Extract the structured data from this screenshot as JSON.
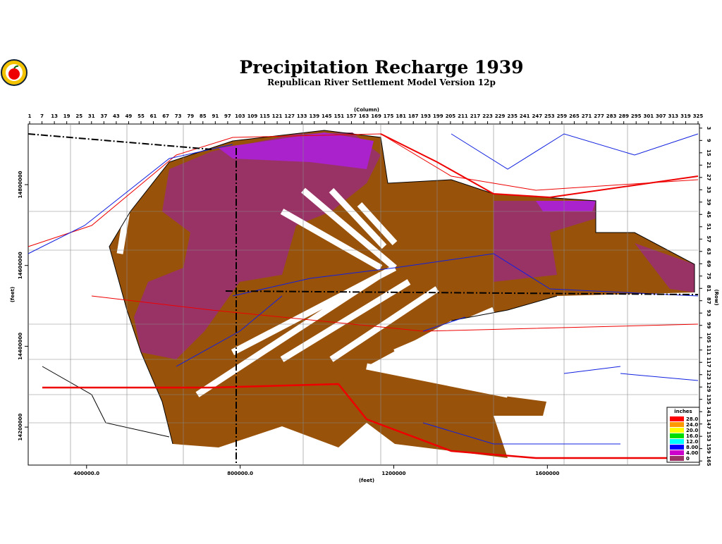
{
  "header": {
    "title": "Precipitation Recharge 1939",
    "subtitle": "Republican River Settlement Model Version 12p"
  },
  "map": {
    "column_label": "(Column)",
    "row_label": "(Row)",
    "x_label": "(feet)",
    "y_label": "(feet)",
    "columns": [
      1,
      7,
      13,
      19,
      25,
      31,
      37,
      43,
      49,
      55,
      61,
      67,
      73,
      79,
      85,
      91,
      97,
      103,
      109,
      115,
      121,
      127,
      133,
      139,
      145,
      151,
      157,
      163,
      169,
      175,
      181,
      187,
      193,
      199,
      205,
      211,
      217,
      223,
      229,
      235,
      241,
      247,
      253,
      259,
      265,
      271,
      277,
      283,
      289,
      295,
      301,
      307,
      313,
      319,
      325
    ],
    "column_range": [
      1,
      325
    ],
    "rows": [
      3,
      9,
      15,
      21,
      27,
      33,
      39,
      45,
      51,
      57,
      63,
      69,
      75,
      81,
      87,
      93,
      99,
      105,
      111,
      117,
      123,
      129,
      135,
      141,
      147,
      153,
      159,
      165
    ],
    "row_range": [
      1,
      167
    ],
    "xlim": [
      248000,
      1996000
    ],
    "xticks": [
      {
        "value": 400000,
        "label": "400000.0"
      },
      {
        "value": 800000,
        "label": "800000.0"
      },
      1200000,
      1600000
    ],
    "ylim": [
      14106000,
      14950000
    ],
    "yticks": [
      14800000,
      14600000,
      14400000,
      14200000
    ],
    "legend": {
      "title": "inches",
      "items": [
        {
          "value": 28,
          "label": "28.0",
          "color": "#ff0000"
        },
        {
          "value": 24,
          "label": "24.0",
          "color": "#ff9900"
        },
        {
          "value": 20,
          "label": "20.0",
          "color": "#ffff00"
        },
        {
          "value": 16,
          "label": "16.0",
          "color": "#00dd00"
        },
        {
          "value": 12,
          "label": "12.0",
          "color": "#00ffff"
        },
        {
          "value": 8,
          "label": "8.00",
          "color": "#0000ff"
        },
        {
          "value": 4,
          "label": "4.00",
          "color": "#cc00cc"
        },
        {
          "value": 0,
          "color": "#993366"
        }
      ]
    }
  }
}
